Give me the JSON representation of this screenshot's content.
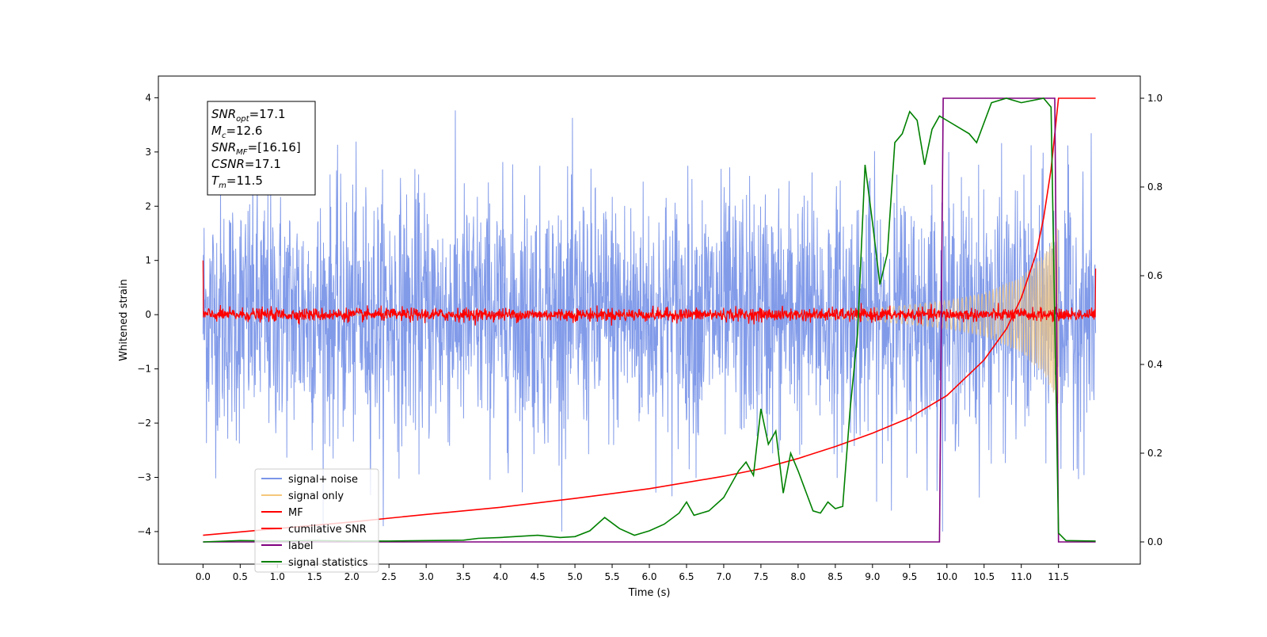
{
  "chart_data": {
    "type": "line",
    "xlabel": "Time (s)",
    "ylabel": "Whitened strain",
    "xlim": [
      -0.6,
      12.6
    ],
    "ylim": [
      -4.6,
      4.4
    ],
    "y2lim": [
      -0.05,
      1.05
    ],
    "x_ticks": [
      "0.0",
      "0.5",
      "1.0",
      "1.5",
      "2.0",
      "2.5",
      "3.0",
      "3.5",
      "4.0",
      "4.5",
      "5.0",
      "5.5",
      "6.0",
      "6.5",
      "7.0",
      "7.5",
      "8.0",
      "8.5",
      "9.0",
      "9.5",
      "10.0",
      "10.5",
      "11.0",
      "11.5"
    ],
    "y_ticks": [
      "4",
      "3",
      "2",
      "1",
      "0",
      "−1",
      "−2",
      "−3",
      "−4"
    ],
    "y2_ticks": [
      "1.0",
      "0.8",
      "0.6",
      "0.4",
      "0.2",
      "0.0"
    ],
    "grid": false,
    "legend_position": "lower-left",
    "annotation": {
      "snr_opt": "=17.1",
      "mc": "=12.6",
      "snr_mf": "=[16.16]",
      "csnr": "=17.1",
      "tm": "=11.5"
    },
    "series": [
      {
        "name": "signal+ noise",
        "color": "#7b96e8",
        "axis": "left",
        "kind": "noise",
        "x_range": [
          0,
          12
        ],
        "amplitude_sd": 1.15
      },
      {
        "name": "signal only",
        "color": "#f5c77a",
        "axis": "left",
        "kind": "chirp",
        "x_range": [
          0,
          11.5
        ],
        "envelope": [
          [
            0,
            0.0
          ],
          [
            8.0,
            0.04
          ],
          [
            8.5,
            0.08
          ],
          [
            9.0,
            0.12
          ],
          [
            9.5,
            0.18
          ],
          [
            10.0,
            0.26
          ],
          [
            10.5,
            0.4
          ],
          [
            11.0,
            0.7
          ],
          [
            11.3,
            1.1
          ],
          [
            11.5,
            1.65
          ]
        ]
      },
      {
        "name": "MF",
        "color": "#ff0000",
        "axis": "left",
        "kind": "mf-noise",
        "x_range": [
          0,
          12
        ],
        "amplitude_sd": 0.06
      },
      {
        "name": "cumilative SNR",
        "color": "#ff0000",
        "axis": "right",
        "x": [
          0.0,
          1.0,
          2.0,
          3.0,
          4.0,
          5.0,
          6.0,
          7.0,
          7.5,
          8.0,
          8.5,
          9.0,
          9.5,
          10.0,
          10.5,
          10.8,
          11.0,
          11.2,
          11.3,
          11.4,
          11.45,
          11.5,
          12.0
        ],
        "y": [
          0.015,
          0.03,
          0.045,
          0.062,
          0.078,
          0.098,
          0.12,
          0.148,
          0.165,
          0.188,
          0.215,
          0.245,
          0.28,
          0.33,
          0.41,
          0.48,
          0.55,
          0.65,
          0.73,
          0.84,
          0.92,
          1.0,
          1.0
        ]
      },
      {
        "name": "label",
        "color": "#800080",
        "axis": "right",
        "x": [
          0.0,
          9.9,
          9.95,
          11.45,
          11.5,
          12.0
        ],
        "y": [
          0.0,
          0.0,
          1.0,
          1.0,
          0.0,
          0.0
        ]
      },
      {
        "name": "signal statistics",
        "color": "#008000",
        "axis": "right",
        "x": [
          0.0,
          0.5,
          1.0,
          1.5,
          2.0,
          2.5,
          3.0,
          3.5,
          3.7,
          4.0,
          4.5,
          4.8,
          5.0,
          5.2,
          5.4,
          5.6,
          5.8,
          6.0,
          6.2,
          6.4,
          6.5,
          6.6,
          6.8,
          7.0,
          7.2,
          7.3,
          7.4,
          7.5,
          7.6,
          7.7,
          7.8,
          7.9,
          8.0,
          8.2,
          8.3,
          8.4,
          8.5,
          8.6,
          8.7,
          8.8,
          8.9,
          9.0,
          9.1,
          9.2,
          9.3,
          9.4,
          9.5,
          9.6,
          9.7,
          9.8,
          9.9,
          10.0,
          10.2,
          10.3,
          10.4,
          10.6,
          10.8,
          11.0,
          11.3,
          11.4,
          11.5,
          11.6,
          12.0
        ],
        "y": [
          0.0,
          0.003,
          0.002,
          0.003,
          0.002,
          0.002,
          0.003,
          0.004,
          0.008,
          0.01,
          0.015,
          0.01,
          0.012,
          0.025,
          0.055,
          0.03,
          0.015,
          0.025,
          0.04,
          0.065,
          0.09,
          0.06,
          0.07,
          0.1,
          0.16,
          0.18,
          0.15,
          0.3,
          0.22,
          0.25,
          0.11,
          0.2,
          0.16,
          0.07,
          0.065,
          0.09,
          0.075,
          0.08,
          0.3,
          0.47,
          0.85,
          0.72,
          0.58,
          0.65,
          0.9,
          0.92,
          0.97,
          0.95,
          0.85,
          0.93,
          0.96,
          0.95,
          0.93,
          0.92,
          0.9,
          0.99,
          1.0,
          0.99,
          1.0,
          0.98,
          0.02,
          0.003,
          0.002
        ]
      }
    ]
  }
}
